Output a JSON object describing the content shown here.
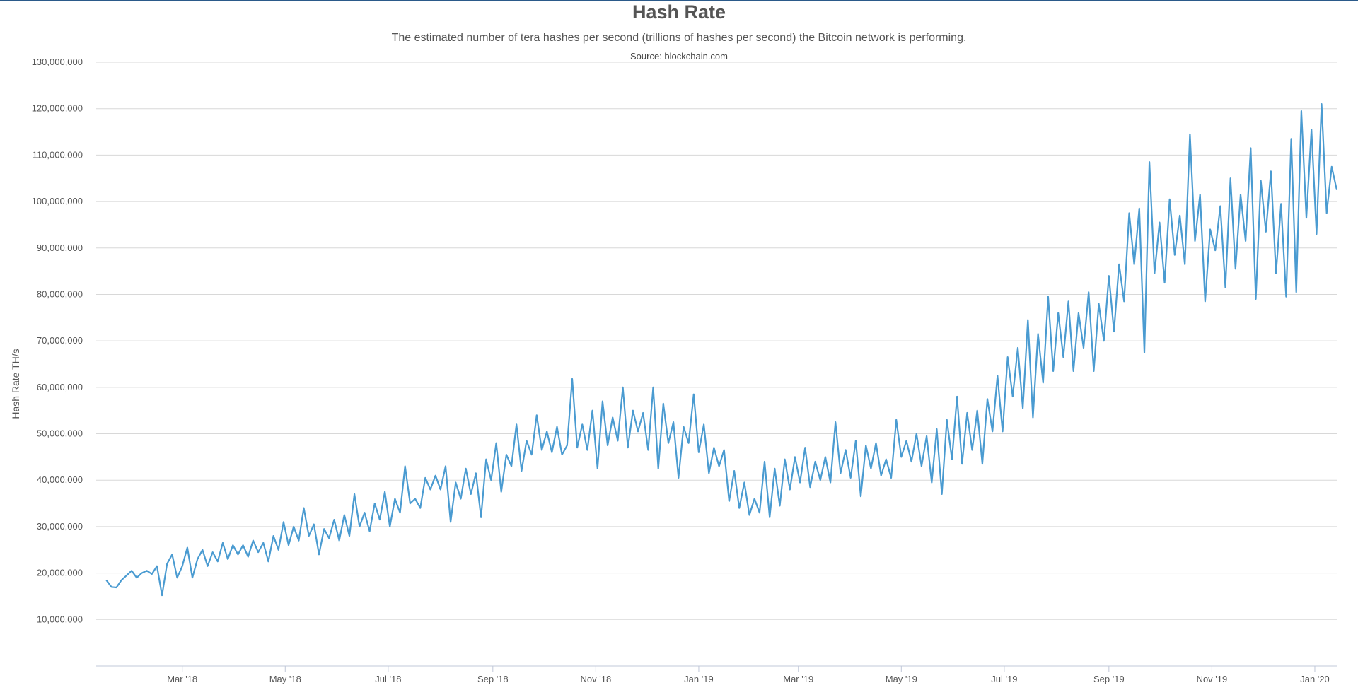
{
  "chart_data": {
    "type": "line",
    "title": "Hash Rate",
    "subtitle": "The estimated number of tera hashes per second (trillions of hashes per second) the Bitcoin network is performing.",
    "source": "Source: blockchain.com",
    "ylabel": "Hash Rate TH/s",
    "xlabel": "",
    "ylim": [
      0,
      130000000
    ],
    "xlim": [
      "2018-01-09",
      "2020-01-14"
    ],
    "yticks": [
      10000000,
      20000000,
      30000000,
      40000000,
      50000000,
      60000000,
      70000000,
      80000000,
      90000000,
      100000000,
      110000000,
      120000000,
      130000000
    ],
    "ytick_labels": [
      "10,000,000",
      "20,000,000",
      "30,000,000",
      "40,000,000",
      "50,000,000",
      "60,000,000",
      "70,000,000",
      "80,000,000",
      "90,000,000",
      "100,000,000",
      "110,000,000",
      "120,000,000",
      "130,000,000"
    ],
    "xticks": [
      "2018-03-01",
      "2018-05-01",
      "2018-07-01",
      "2018-09-01",
      "2018-11-01",
      "2019-01-01",
      "2019-03-01",
      "2019-05-01",
      "2019-07-01",
      "2019-09-01",
      "2019-11-01",
      "2020-01-01"
    ],
    "xtick_labels": [
      "Mar '18",
      "May '18",
      "Jul '18",
      "Sep '18",
      "Nov '18",
      "Jan '19",
      "Mar '19",
      "May '19",
      "Jul '19",
      "Sep '19",
      "Nov '19",
      "Jan '20"
    ],
    "grid": true,
    "legend": "none",
    "color": "#4a9bd1",
    "series": [
      {
        "values": [
          [
            "2018-01-15",
            18500000
          ],
          [
            "2018-01-18",
            17000000
          ],
          [
            "2018-01-21",
            16900000
          ],
          [
            "2018-01-24",
            18500000
          ],
          [
            "2018-01-27",
            19500000
          ],
          [
            "2018-01-30",
            20500000
          ],
          [
            "2018-02-02",
            19000000
          ],
          [
            "2018-02-05",
            20000000
          ],
          [
            "2018-02-08",
            20500000
          ],
          [
            "2018-02-11",
            19800000
          ],
          [
            "2018-02-14",
            21500000
          ],
          [
            "2018-02-17",
            15200000
          ],
          [
            "2018-02-20",
            22000000
          ],
          [
            "2018-02-23",
            24000000
          ],
          [
            "2018-02-26",
            19000000
          ],
          [
            "2018-03-01",
            21500000
          ],
          [
            "2018-03-04",
            25500000
          ],
          [
            "2018-03-07",
            19000000
          ],
          [
            "2018-03-10",
            23000000
          ],
          [
            "2018-03-13",
            25000000
          ],
          [
            "2018-03-16",
            21500000
          ],
          [
            "2018-03-19",
            24500000
          ],
          [
            "2018-03-22",
            22500000
          ],
          [
            "2018-03-25",
            26500000
          ],
          [
            "2018-03-28",
            23000000
          ],
          [
            "2018-03-31",
            26000000
          ],
          [
            "2018-04-03",
            24000000
          ],
          [
            "2018-04-06",
            26000000
          ],
          [
            "2018-04-09",
            23500000
          ],
          [
            "2018-04-12",
            27000000
          ],
          [
            "2018-04-15",
            24500000
          ],
          [
            "2018-04-18",
            26500000
          ],
          [
            "2018-04-21",
            22500000
          ],
          [
            "2018-04-24",
            28000000
          ],
          [
            "2018-04-27",
            25000000
          ],
          [
            "2018-04-30",
            31000000
          ],
          [
            "2018-05-03",
            26000000
          ],
          [
            "2018-05-06",
            30000000
          ],
          [
            "2018-05-09",
            27000000
          ],
          [
            "2018-05-12",
            34000000
          ],
          [
            "2018-05-15",
            28000000
          ],
          [
            "2018-05-18",
            30500000
          ],
          [
            "2018-05-21",
            24000000
          ],
          [
            "2018-05-24",
            29500000
          ],
          [
            "2018-05-27",
            27500000
          ],
          [
            "2018-05-30",
            31500000
          ],
          [
            "2018-06-02",
            27000000
          ],
          [
            "2018-06-05",
            32500000
          ],
          [
            "2018-06-08",
            28000000
          ],
          [
            "2018-06-11",
            37000000
          ],
          [
            "2018-06-14",
            30000000
          ],
          [
            "2018-06-17",
            33000000
          ],
          [
            "2018-06-20",
            29000000
          ],
          [
            "2018-06-23",
            35000000
          ],
          [
            "2018-06-26",
            31500000
          ],
          [
            "2018-06-29",
            37500000
          ],
          [
            "2018-07-02",
            30000000
          ],
          [
            "2018-07-05",
            36000000
          ],
          [
            "2018-07-08",
            33000000
          ],
          [
            "2018-07-11",
            43000000
          ],
          [
            "2018-07-14",
            35000000
          ],
          [
            "2018-07-17",
            36000000
          ],
          [
            "2018-07-20",
            34000000
          ],
          [
            "2018-07-23",
            40500000
          ],
          [
            "2018-07-26",
            38000000
          ],
          [
            "2018-07-29",
            41000000
          ],
          [
            "2018-08-01",
            38000000
          ],
          [
            "2018-08-04",
            43000000
          ],
          [
            "2018-08-07",
            31000000
          ],
          [
            "2018-08-10",
            39500000
          ],
          [
            "2018-08-13",
            36000000
          ],
          [
            "2018-08-16",
            42500000
          ],
          [
            "2018-08-19",
            37000000
          ],
          [
            "2018-08-22",
            41500000
          ],
          [
            "2018-08-25",
            32000000
          ],
          [
            "2018-08-28",
            44500000
          ],
          [
            "2018-08-31",
            40000000
          ],
          [
            "2018-09-03",
            48000000
          ],
          [
            "2018-09-06",
            37500000
          ],
          [
            "2018-09-09",
            45500000
          ],
          [
            "2018-09-12",
            43000000
          ],
          [
            "2018-09-15",
            52000000
          ],
          [
            "2018-09-18",
            42000000
          ],
          [
            "2018-09-21",
            48500000
          ],
          [
            "2018-09-24",
            45500000
          ],
          [
            "2018-09-27",
            54000000
          ],
          [
            "2018-09-30",
            46500000
          ],
          [
            "2018-10-03",
            50500000
          ],
          [
            "2018-10-06",
            46000000
          ],
          [
            "2018-10-09",
            51500000
          ],
          [
            "2018-10-12",
            45500000
          ],
          [
            "2018-10-15",
            47500000
          ],
          [
            "2018-10-18",
            61800000
          ],
          [
            "2018-10-21",
            47000000
          ],
          [
            "2018-10-24",
            52000000
          ],
          [
            "2018-10-27",
            46500000
          ],
          [
            "2018-10-30",
            55000000
          ],
          [
            "2018-11-02",
            42500000
          ],
          [
            "2018-11-05",
            57000000
          ],
          [
            "2018-11-08",
            47500000
          ],
          [
            "2018-11-11",
            53500000
          ],
          [
            "2018-11-14",
            48500000
          ],
          [
            "2018-11-17",
            60000000
          ],
          [
            "2018-11-20",
            47000000
          ],
          [
            "2018-11-23",
            55000000
          ],
          [
            "2018-11-26",
            50500000
          ],
          [
            "2018-11-29",
            54500000
          ],
          [
            "2018-12-02",
            46500000
          ],
          [
            "2018-12-05",
            60000000
          ],
          [
            "2018-12-08",
            42500000
          ],
          [
            "2018-12-11",
            56500000
          ],
          [
            "2018-12-14",
            48000000
          ],
          [
            "2018-12-17",
            52500000
          ],
          [
            "2018-12-20",
            40500000
          ],
          [
            "2018-12-23",
            51500000
          ],
          [
            "2018-12-26",
            48000000
          ],
          [
            "2018-12-29",
            58500000
          ],
          [
            "2019-01-01",
            46000000
          ],
          [
            "2019-01-04",
            52000000
          ],
          [
            "2019-01-07",
            41500000
          ],
          [
            "2019-01-10",
            47000000
          ],
          [
            "2019-01-13",
            43000000
          ],
          [
            "2019-01-16",
            46500000
          ],
          [
            "2019-01-19",
            35500000
          ],
          [
            "2019-01-22",
            42000000
          ],
          [
            "2019-01-25",
            34000000
          ],
          [
            "2019-01-28",
            39500000
          ],
          [
            "2019-01-31",
            32500000
          ],
          [
            "2019-02-03",
            36000000
          ],
          [
            "2019-02-06",
            33000000
          ],
          [
            "2019-02-09",
            44000000
          ],
          [
            "2019-02-12",
            32000000
          ],
          [
            "2019-02-15",
            42500000
          ],
          [
            "2019-02-18",
            34500000
          ],
          [
            "2019-02-21",
            44500000
          ],
          [
            "2019-02-24",
            38000000
          ],
          [
            "2019-02-27",
            45000000
          ],
          [
            "2019-03-02",
            39500000
          ],
          [
            "2019-03-05",
            47000000
          ],
          [
            "2019-03-08",
            38500000
          ],
          [
            "2019-03-11",
            44000000
          ],
          [
            "2019-03-14",
            40000000
          ],
          [
            "2019-03-17",
            45000000
          ],
          [
            "2019-03-20",
            39500000
          ],
          [
            "2019-03-23",
            52500000
          ],
          [
            "2019-03-26",
            41500000
          ],
          [
            "2019-03-29",
            46500000
          ],
          [
            "2019-04-01",
            40500000
          ],
          [
            "2019-04-04",
            48500000
          ],
          [
            "2019-04-07",
            36500000
          ],
          [
            "2019-04-10",
            47500000
          ],
          [
            "2019-04-13",
            42500000
          ],
          [
            "2019-04-16",
            48000000
          ],
          [
            "2019-04-19",
            41000000
          ],
          [
            "2019-04-22",
            44500000
          ],
          [
            "2019-04-25",
            40500000
          ],
          [
            "2019-04-28",
            53000000
          ],
          [
            "2019-05-01",
            45000000
          ],
          [
            "2019-05-04",
            48500000
          ],
          [
            "2019-05-07",
            44000000
          ],
          [
            "2019-05-10",
            50000000
          ],
          [
            "2019-05-13",
            43000000
          ],
          [
            "2019-05-16",
            49500000
          ],
          [
            "2019-05-19",
            39500000
          ],
          [
            "2019-05-22",
            51000000
          ],
          [
            "2019-05-25",
            37000000
          ],
          [
            "2019-05-28",
            53000000
          ],
          [
            "2019-05-31",
            44500000
          ],
          [
            "2019-06-03",
            58000000
          ],
          [
            "2019-06-06",
            43500000
          ],
          [
            "2019-06-09",
            54500000
          ],
          [
            "2019-06-12",
            46500000
          ],
          [
            "2019-06-15",
            55000000
          ],
          [
            "2019-06-18",
            43500000
          ],
          [
            "2019-06-21",
            57500000
          ],
          [
            "2019-06-24",
            50500000
          ],
          [
            "2019-06-27",
            62500000
          ],
          [
            "2019-06-30",
            50500000
          ],
          [
            "2019-07-03",
            66500000
          ],
          [
            "2019-07-06",
            58000000
          ],
          [
            "2019-07-09",
            68500000
          ],
          [
            "2019-07-12",
            55500000
          ],
          [
            "2019-07-15",
            74500000
          ],
          [
            "2019-07-18",
            53500000
          ],
          [
            "2019-07-21",
            71500000
          ],
          [
            "2019-07-24",
            61000000
          ],
          [
            "2019-07-27",
            79500000
          ],
          [
            "2019-07-30",
            63500000
          ],
          [
            "2019-08-02",
            76000000
          ],
          [
            "2019-08-05",
            66500000
          ],
          [
            "2019-08-08",
            78500000
          ],
          [
            "2019-08-11",
            63500000
          ],
          [
            "2019-08-14",
            76000000
          ],
          [
            "2019-08-17",
            68500000
          ],
          [
            "2019-08-20",
            80500000
          ],
          [
            "2019-08-23",
            63500000
          ],
          [
            "2019-08-26",
            78000000
          ],
          [
            "2019-08-29",
            70000000
          ],
          [
            "2019-09-01",
            84000000
          ],
          [
            "2019-09-04",
            72000000
          ],
          [
            "2019-09-07",
            86500000
          ],
          [
            "2019-09-10",
            78500000
          ],
          [
            "2019-09-13",
            97500000
          ],
          [
            "2019-09-16",
            86500000
          ],
          [
            "2019-09-19",
            98500000
          ],
          [
            "2019-09-22",
            67500000
          ],
          [
            "2019-09-25",
            108500000
          ],
          [
            "2019-09-28",
            84500000
          ],
          [
            "2019-10-01",
            95500000
          ],
          [
            "2019-10-04",
            82500000
          ],
          [
            "2019-10-07",
            100500000
          ],
          [
            "2019-10-10",
            88500000
          ],
          [
            "2019-10-13",
            97000000
          ],
          [
            "2019-10-16",
            86500000
          ],
          [
            "2019-10-19",
            114500000
          ],
          [
            "2019-10-22",
            91500000
          ],
          [
            "2019-10-25",
            101500000
          ],
          [
            "2019-10-28",
            78500000
          ],
          [
            "2019-10-31",
            94000000
          ],
          [
            "2019-11-03",
            89500000
          ],
          [
            "2019-11-06",
            99000000
          ],
          [
            "2019-11-09",
            81500000
          ],
          [
            "2019-11-12",
            105000000
          ],
          [
            "2019-11-15",
            85500000
          ],
          [
            "2019-11-18",
            101500000
          ],
          [
            "2019-11-21",
            91500000
          ],
          [
            "2019-11-24",
            111500000
          ],
          [
            "2019-11-27",
            79000000
          ],
          [
            "2019-11-30",
            104500000
          ],
          [
            "2019-12-03",
            93500000
          ],
          [
            "2019-12-06",
            106500000
          ],
          [
            "2019-12-09",
            84500000
          ],
          [
            "2019-12-12",
            99500000
          ],
          [
            "2019-12-15",
            79500000
          ],
          [
            "2019-12-18",
            113500000
          ],
          [
            "2019-12-21",
            80500000
          ],
          [
            "2019-12-24",
            119500000
          ],
          [
            "2019-12-27",
            96500000
          ],
          [
            "2019-12-30",
            115500000
          ],
          [
            "2020-01-02",
            93000000
          ],
          [
            "2020-01-05",
            121000000
          ],
          [
            "2020-01-08",
            97500000
          ],
          [
            "2020-01-11",
            107500000
          ],
          [
            "2020-01-14",
            102500000
          ]
        ]
      }
    ]
  }
}
